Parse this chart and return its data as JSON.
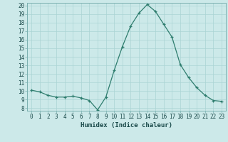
{
  "x": [
    0,
    1,
    2,
    3,
    4,
    5,
    6,
    7,
    8,
    9,
    10,
    11,
    12,
    13,
    14,
    15,
    16,
    17,
    18,
    19,
    20,
    21,
    22,
    23
  ],
  "y": [
    10.1,
    9.9,
    9.5,
    9.3,
    9.3,
    9.4,
    9.2,
    8.9,
    7.8,
    9.3,
    12.4,
    15.2,
    17.6,
    19.1,
    20.1,
    19.3,
    17.8,
    16.3,
    13.1,
    11.6,
    10.4,
    9.5,
    8.9,
    8.8
  ],
  "line_color": "#2e7d6e",
  "marker": "+",
  "marker_size": 3,
  "bg_color": "#cce9e9",
  "grid_major_color": "#aad4d4",
  "grid_minor_color": "#bbdede",
  "xlabel": "Humidex (Indice chaleur)",
  "ylim": [
    8,
    20
  ],
  "xlim": [
    -0.5,
    23.5
  ],
  "yticks": [
    8,
    9,
    10,
    11,
    12,
    13,
    14,
    15,
    16,
    17,
    18,
    19,
    20
  ],
  "xticks": [
    0,
    1,
    2,
    3,
    4,
    5,
    6,
    7,
    8,
    9,
    10,
    11,
    12,
    13,
    14,
    15,
    16,
    17,
    18,
    19,
    20,
    21,
    22,
    23
  ],
  "tick_fontsize": 5.5,
  "xlabel_fontsize": 6.5
}
